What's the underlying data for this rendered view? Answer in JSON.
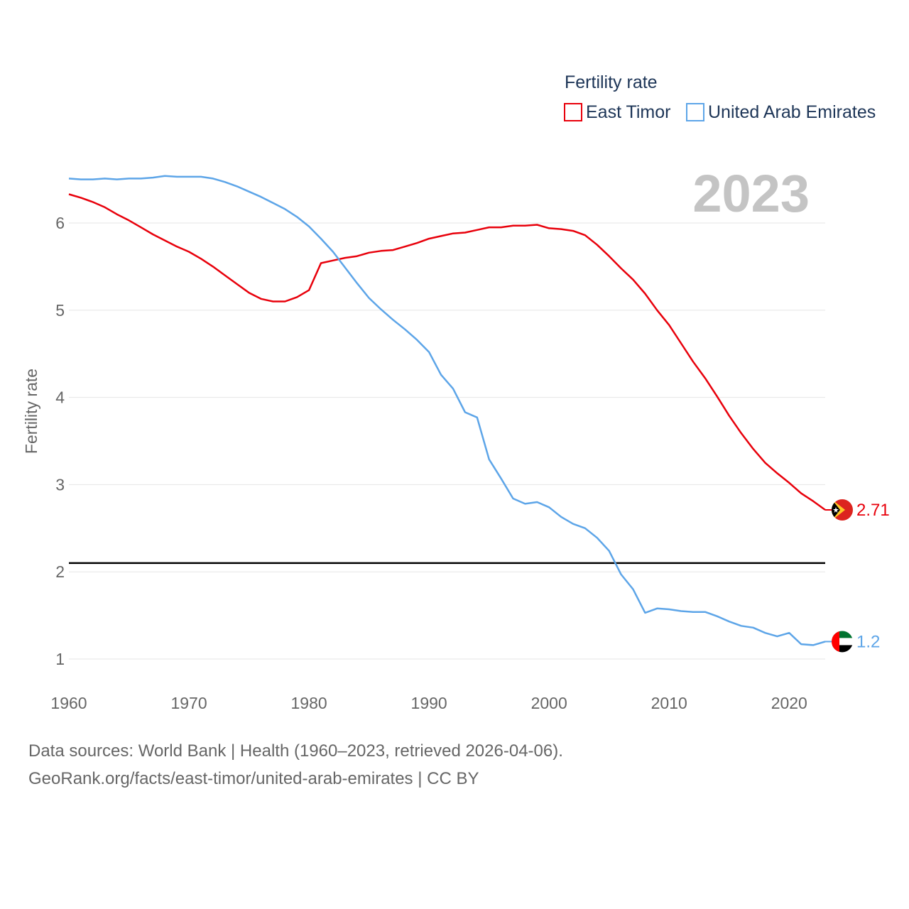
{
  "chart_data": {
    "type": "line",
    "legend_title": "Fertility rate",
    "year_label": "2023",
    "ylabel": "Fertility rate",
    "xlim": [
      1960,
      2023
    ],
    "ylim": [
      0.8,
      6.6
    ],
    "x_ticks": [
      1960,
      1970,
      1980,
      1990,
      2000,
      2010,
      2020
    ],
    "y_ticks": [
      1,
      2,
      3,
      4,
      5,
      6
    ],
    "grid": true,
    "legend_position": "top-right",
    "reference_line": {
      "y": 2.1,
      "color": "#000000"
    },
    "x": [
      1960,
      1961,
      1962,
      1963,
      1964,
      1965,
      1966,
      1967,
      1968,
      1969,
      1970,
      1971,
      1972,
      1973,
      1974,
      1975,
      1976,
      1977,
      1978,
      1979,
      1980,
      1981,
      1982,
      1983,
      1984,
      1985,
      1986,
      1987,
      1988,
      1989,
      1990,
      1991,
      1992,
      1993,
      1994,
      1995,
      1996,
      1997,
      1998,
      1999,
      2000,
      2001,
      2002,
      2003,
      2004,
      2005,
      2006,
      2007,
      2008,
      2009,
      2010,
      2011,
      2012,
      2013,
      2014,
      2015,
      2016,
      2017,
      2018,
      2019,
      2020,
      2021,
      2022,
      2023
    ],
    "series": [
      {
        "name": "East Timor",
        "color": "#e8000b",
        "end_label": "2.71",
        "values": [
          6.33,
          6.29,
          6.24,
          6.18,
          6.1,
          6.03,
          5.95,
          5.87,
          5.8,
          5.73,
          5.67,
          5.59,
          5.5,
          5.4,
          5.3,
          5.2,
          5.13,
          5.1,
          5.1,
          5.15,
          5.23,
          5.54,
          5.57,
          5.6,
          5.62,
          5.66,
          5.68,
          5.69,
          5.73,
          5.77,
          5.82,
          5.85,
          5.88,
          5.89,
          5.92,
          5.95,
          5.95,
          5.97,
          5.97,
          5.98,
          5.94,
          5.93,
          5.91,
          5.86,
          5.75,
          5.62,
          5.48,
          5.35,
          5.19,
          5.0,
          4.83,
          4.62,
          4.41,
          4.22,
          4.01,
          3.79,
          3.59,
          3.41,
          3.25,
          3.13,
          3.02,
          2.9,
          2.81,
          2.71
        ]
      },
      {
        "name": "United Arab Emirates",
        "color": "#5da5e8",
        "end_label": "1.2",
        "values": [
          6.51,
          6.5,
          6.5,
          6.51,
          6.5,
          6.51,
          6.51,
          6.52,
          6.54,
          6.53,
          6.53,
          6.53,
          6.51,
          6.47,
          6.42,
          6.36,
          6.3,
          6.23,
          6.16,
          6.07,
          5.96,
          5.82,
          5.67,
          5.49,
          5.31,
          5.14,
          5.01,
          4.89,
          4.78,
          4.66,
          4.52,
          4.26,
          4.1,
          3.83,
          3.77,
          3.29,
          3.07,
          2.84,
          2.78,
          2.8,
          2.74,
          2.63,
          2.55,
          2.5,
          2.39,
          2.24,
          1.97,
          1.8,
          1.53,
          1.58,
          1.57,
          1.55,
          1.54,
          1.54,
          1.49,
          1.43,
          1.38,
          1.36,
          1.3,
          1.26,
          1.3,
          1.17,
          1.16,
          1.2
        ]
      }
    ],
    "flag_icons": [
      "east-timor-flag-icon",
      "uae-flag-icon"
    ]
  },
  "source": {
    "line1": "Data sources: World Bank | Health (1960–2023, retrieved 2026-04-06).",
    "line2": "GeoRank.org/facts/east-timor/united-arab-emirates | CC BY"
  }
}
